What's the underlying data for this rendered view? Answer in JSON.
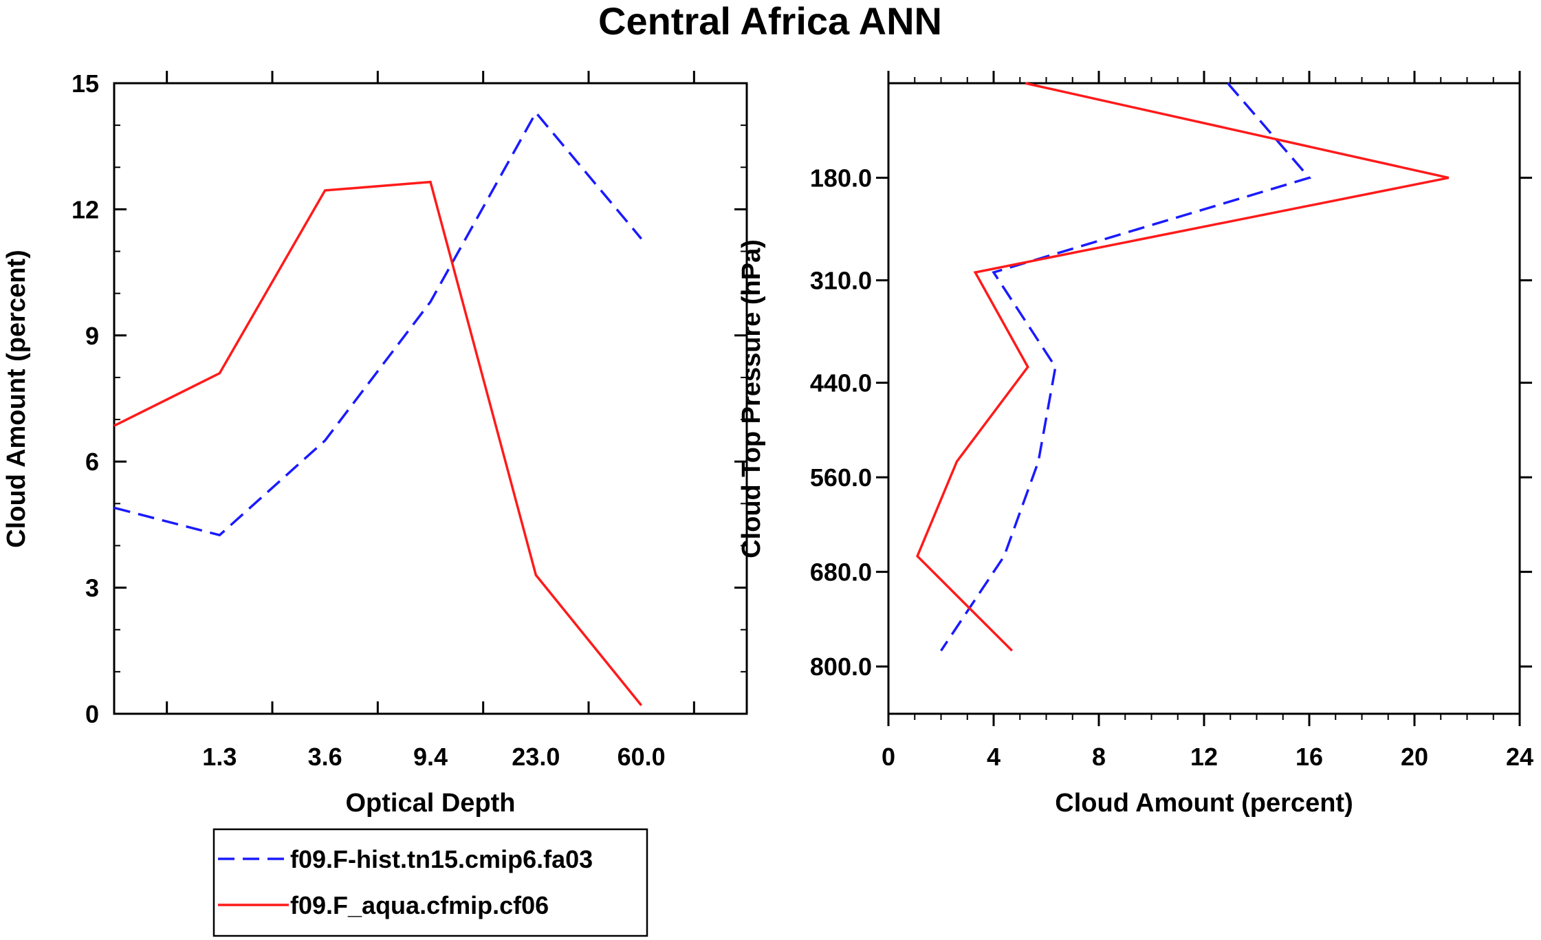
{
  "figure_title": "Central Africa ANN",
  "colors": {
    "series_blue": "#1a1aff",
    "series_red": "#ff1a1a",
    "axis": "#000000"
  },
  "legend": {
    "entries": [
      {
        "label": "f09.F-hist.tn15.cmip6.fa03",
        "style": "dashed",
        "color": "#1a1aff"
      },
      {
        "label": "f09.F_aqua.cfmip.cf06",
        "style": "solid",
        "color": "#ff1a1a"
      }
    ]
  },
  "chart_data": [
    {
      "type": "line",
      "title": "",
      "xlabel": "Optical Depth",
      "ylabel": "Cloud Amount (percent)",
      "x_scale": "category-index",
      "xlim": [
        0,
        6
      ],
      "ylim": [
        0,
        15
      ],
      "xtick_positions": [
        0.5,
        1.5,
        2.5,
        3.5,
        4.5,
        5.5
      ],
      "xtick_labels": [
        "1.3",
        "3.6",
        "9.4",
        "23.0",
        "60.0"
      ],
      "xtick_label_positions": [
        1,
        2,
        3,
        4,
        5
      ],
      "yticks": [
        0,
        3,
        6,
        9,
        12,
        15
      ],
      "ytick_labels": [
        "0",
        "3",
        "6",
        "9",
        "12",
        "15"
      ],
      "yminor_step": 1,
      "x": [
        0,
        1,
        2,
        3,
        4,
        5
      ],
      "series": [
        {
          "name": "f09.F-hist.tn15.cmip6.fa03",
          "color": "#1a1aff",
          "dashed": true,
          "x": [
            0,
            1,
            2,
            3,
            4,
            5
          ],
          "values": [
            4.9,
            4.25,
            6.5,
            9.8,
            14.3,
            11.3
          ]
        },
        {
          "name": "f09.F_aqua.cfmip.cf06",
          "color": "#ff1a1a",
          "dashed": false,
          "x": [
            0,
            1,
            2,
            3,
            4,
            5
          ],
          "values": [
            6.85,
            8.1,
            12.45,
            12.65,
            3.3,
            0.2
          ]
        }
      ]
    },
    {
      "type": "line",
      "title": "",
      "xlabel": "Cloud Amount (percent)",
      "ylabel": "Cloud Top Pressure (hPa)",
      "xlim": [
        0,
        24
      ],
      "ylim": [
        60,
        860
      ],
      "y_inverted": true,
      "xticks": [
        0,
        4,
        8,
        12,
        16,
        20,
        24
      ],
      "xtick_labels": [
        "0",
        "4",
        "8",
        "12",
        "16",
        "20",
        "24"
      ],
      "xminor_step": 1,
      "yticks": [
        180,
        310,
        440,
        560,
        680,
        800
      ],
      "ytick_labels": [
        "180.0",
        "310.0",
        "440.0",
        "560.0",
        "680.0",
        "800.0"
      ],
      "series": [
        {
          "name": "f09.F-hist.tn15.cmip6.fa03",
          "color": "#1a1aff",
          "dashed": true,
          "x": [
            12.9,
            16.0,
            4.0,
            6.35,
            5.7,
            4.4,
            2.0
          ],
          "y": [
            60,
            180,
            300,
            420,
            540,
            660,
            780
          ]
        },
        {
          "name": "f09.F_aqua.cfmip.cf06",
          "color": "#ff1a1a",
          "dashed": false,
          "x": [
            5.2,
            21.3,
            3.3,
            5.3,
            2.6,
            1.1,
            4.7
          ],
          "y": [
            60,
            180,
            300,
            420,
            540,
            660,
            780
          ]
        }
      ]
    }
  ]
}
